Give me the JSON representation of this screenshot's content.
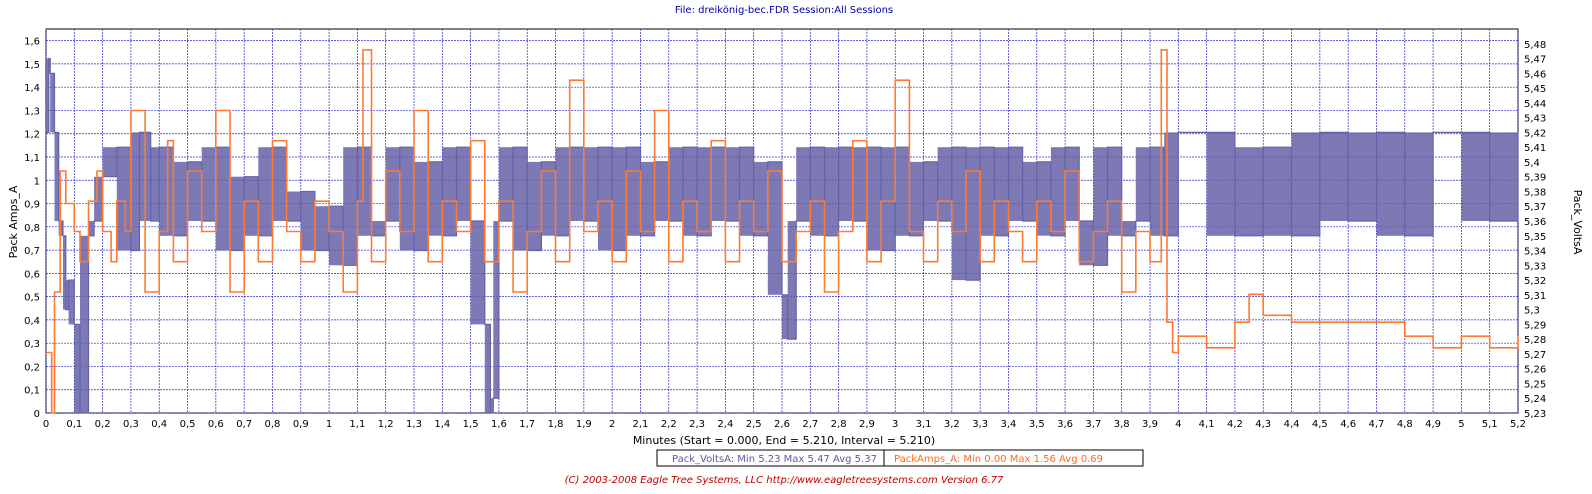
{
  "header": {
    "title": "File: dreikönig-bec.FDR   Session:All Sessions"
  },
  "footer": {
    "copyright": "(C) 2003-2008 Eagle Tree Systems, LLC      http://www.eagletreesystems.com      Version 6.77"
  },
  "legend": {
    "volts": "Pack_VoltsA:  Min 5.23   Max 5.47   Avg 5.37",
    "amps": "PackAmps_A:  Min 0.00   Max 1.56   Avg 0.69"
  },
  "colors": {
    "volts": "#6562a8",
    "amps": "#ff7a30",
    "grid": "#2828c8",
    "title": "#0000b0",
    "footer": "#c00000"
  },
  "chart_data": {
    "type": "line",
    "xlabel": "Minutes (Start = 0.000,  End = 5.210,  Interval =  5.210)",
    "ylabel_left": "Pack Amps_A",
    "ylabel_right": "Pack_VoltsA",
    "xlim": [
      0,
      5.2
    ],
    "ylim_left": [
      0,
      1.65
    ],
    "ylim_right": [
      5.23,
      5.49
    ],
    "grid": true,
    "x_ticks": [
      "0",
      "0,1",
      "0,2",
      "0,3",
      "0,4",
      "0,5",
      "0,6",
      "0,7",
      "0,8",
      "0,9",
      "1",
      "1,1",
      "1,2",
      "1,3",
      "1,4",
      "1,5",
      "1,6",
      "1,7",
      "1,8",
      "1,9",
      "2",
      "2,1",
      "2,2",
      "2,3",
      "2,4",
      "2,5",
      "2,6",
      "2,7",
      "2,8",
      "2,9",
      "3",
      "3,1",
      "3,2",
      "3,3",
      "3,4",
      "3,5",
      "3,6",
      "3,7",
      "3,8",
      "3,9",
      "4",
      "4,1",
      "4,2",
      "4,3",
      "4,4",
      "4,5",
      "4,6",
      "4,7",
      "4,8",
      "4,9",
      "5",
      "5,1",
      "5,2"
    ],
    "y_left_ticks": [
      "0",
      "0,1",
      "0,2",
      "0,3",
      "0,4",
      "0,5",
      "0,6",
      "0,7",
      "0,8",
      "0,9",
      "1",
      "1,1",
      "1,2",
      "1,3",
      "1,4",
      "1,5",
      "1,6"
    ],
    "y_right_ticks": [
      "5,23",
      "5,24",
      "5,25",
      "5,26",
      "5,27",
      "5,28",
      "5,29",
      "5,3",
      "5,31",
      "5,32",
      "5,33",
      "5,34",
      "5,35",
      "5,36",
      "5,37",
      "5,38",
      "5,39",
      "5,4",
      "5,41",
      "5,42",
      "5,43",
      "5,44",
      "5,45",
      "5,46",
      "5,47",
      "5,48"
    ],
    "series": [
      {
        "name": "Pack_VoltsA",
        "axis": "right",
        "summary": {
          "min": 5.23,
          "max": 5.47,
          "avg": 5.37
        },
        "x": [
          0,
          0.01,
          0.015,
          0.03,
          0.045,
          0.06,
          0.07,
          0.08,
          0.1,
          0.12,
          0.15,
          0.17,
          0.2,
          0.25,
          0.3,
          0.33,
          0.37,
          0.4,
          0.45,
          0.5,
          0.55,
          0.6,
          0.65,
          0.7,
          0.75,
          0.8,
          0.85,
          0.9,
          0.95,
          1.0,
          1.05,
          1.1,
          1.15,
          1.2,
          1.25,
          1.3,
          1.35,
          1.4,
          1.45,
          1.5,
          1.55,
          1.57,
          1.58,
          1.6,
          1.65,
          1.7,
          1.75,
          1.8,
          1.85,
          1.9,
          1.95,
          2.0,
          2.05,
          2.1,
          2.15,
          2.2,
          2.25,
          2.3,
          2.35,
          2.4,
          2.45,
          2.5,
          2.55,
          2.6,
          2.62,
          2.65,
          2.7,
          2.75,
          2.8,
          2.85,
          2.9,
          2.95,
          3.0,
          3.05,
          3.1,
          3.15,
          3.2,
          3.25,
          3.3,
          3.35,
          3.4,
          3.45,
          3.5,
          3.55,
          3.6,
          3.65,
          3.7,
          3.75,
          3.8,
          3.85,
          3.9,
          3.95,
          4.0,
          4.1,
          4.2,
          4.3,
          4.4,
          4.5,
          4.6,
          4.7,
          4.8,
          4.9,
          5.0,
          5.1,
          5.2
        ],
        "values": [
          5.42,
          5.47,
          5.46,
          5.42,
          5.36,
          5.35,
          5.3,
          5.32,
          5.29,
          5.23,
          5.35,
          5.36,
          5.39,
          5.41,
          5.34,
          5.42,
          5.36,
          5.41,
          5.35,
          5.4,
          5.36,
          5.41,
          5.34,
          5.39,
          5.35,
          5.41,
          5.36,
          5.38,
          5.34,
          5.37,
          5.33,
          5.41,
          5.35,
          5.36,
          5.41,
          5.34,
          5.4,
          5.35,
          5.41,
          5.36,
          5.29,
          5.23,
          5.24,
          5.36,
          5.41,
          5.34,
          5.4,
          5.35,
          5.41,
          5.36,
          5.41,
          5.34,
          5.41,
          5.35,
          5.4,
          5.36,
          5.41,
          5.35,
          5.41,
          5.36,
          5.41,
          5.35,
          5.4,
          5.31,
          5.28,
          5.36,
          5.41,
          5.35,
          5.41,
          5.36,
          5.41,
          5.34,
          5.41,
          5.35,
          5.4,
          5.36,
          5.41,
          5.32,
          5.41,
          5.35,
          5.41,
          5.36,
          5.4,
          5.35,
          5.41,
          5.36,
          5.33,
          5.41,
          5.35,
          5.36,
          5.41,
          5.35,
          5.42,
          5.42,
          5.35,
          5.41,
          5.35,
          5.42,
          5.36,
          5.42,
          5.35,
          5.42,
          5.42,
          5.36,
          5.42
        ]
      },
      {
        "name": "PackAmps_A",
        "axis": "left",
        "summary": {
          "min": 0.0,
          "max": 1.56,
          "avg": 0.69
        },
        "x": [
          0,
          0.02,
          0.03,
          0.05,
          0.07,
          0.1,
          0.12,
          0.15,
          0.18,
          0.2,
          0.23,
          0.25,
          0.28,
          0.3,
          0.35,
          0.4,
          0.43,
          0.45,
          0.5,
          0.55,
          0.6,
          0.65,
          0.7,
          0.75,
          0.8,
          0.85,
          0.9,
          0.95,
          1.0,
          1.05,
          1.1,
          1.12,
          1.15,
          1.2,
          1.25,
          1.3,
          1.35,
          1.4,
          1.45,
          1.5,
          1.55,
          1.6,
          1.65,
          1.7,
          1.75,
          1.8,
          1.85,
          1.9,
          1.95,
          2.0,
          2.05,
          2.1,
          2.15,
          2.2,
          2.25,
          2.3,
          2.35,
          2.4,
          2.45,
          2.5,
          2.55,
          2.6,
          2.65,
          2.7,
          2.75,
          2.8,
          2.85,
          2.9,
          2.95,
          3.0,
          3.05,
          3.1,
          3.15,
          3.2,
          3.25,
          3.3,
          3.35,
          3.4,
          3.45,
          3.5,
          3.55,
          3.6,
          3.65,
          3.7,
          3.75,
          3.8,
          3.85,
          3.9,
          3.94,
          3.96,
          3.98,
          4.0,
          4.1,
          4.2,
          4.25,
          4.3,
          4.4,
          4.5,
          4.6,
          4.7,
          4.8,
          4.9,
          5.0,
          5.1,
          5.2
        ],
        "values": [
          0.26,
          0.0,
          0.52,
          1.04,
          0.9,
          0.78,
          0.65,
          0.91,
          1.04,
          0.78,
          0.65,
          0.91,
          0.78,
          1.3,
          0.52,
          0.78,
          1.17,
          0.65,
          1.04,
          0.78,
          1.3,
          0.52,
          0.91,
          0.65,
          1.17,
          0.78,
          0.65,
          0.91,
          0.78,
          0.52,
          0.91,
          1.56,
          0.65,
          1.04,
          0.78,
          1.3,
          0.65,
          0.91,
          0.78,
          1.17,
          0.65,
          0.91,
          0.52,
          0.78,
          1.04,
          0.65,
          1.43,
          0.78,
          0.91,
          0.65,
          1.04,
          0.78,
          1.3,
          0.65,
          0.91,
          0.78,
          1.17,
          0.65,
          0.91,
          0.78,
          1.04,
          0.65,
          0.78,
          0.91,
          0.52,
          0.78,
          1.17,
          0.65,
          0.91,
          1.43,
          0.78,
          0.65,
          0.91,
          0.78,
          1.04,
          0.65,
          0.91,
          0.78,
          0.65,
          0.91,
          0.78,
          1.04,
          0.65,
          0.78,
          0.91,
          0.52,
          0.78,
          0.65,
          1.56,
          0.39,
          0.26,
          0.33,
          0.28,
          0.39,
          0.51,
          0.42,
          0.39,
          0.39,
          0.39,
          0.39,
          0.33,
          0.28,
          0.33,
          0.28,
          0.33
        ]
      }
    ]
  }
}
